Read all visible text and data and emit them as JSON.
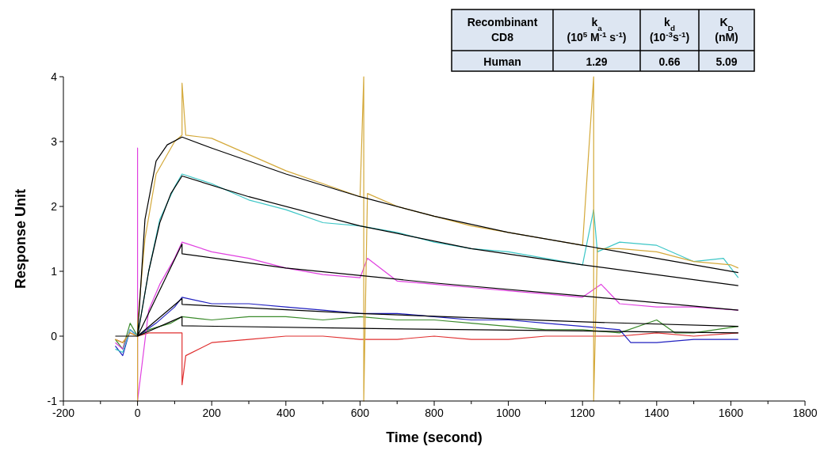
{
  "chart_data": [
    {
      "type": "line",
      "xlabel": "Time (second)",
      "ylabel": "Response Unit",
      "xlim": [
        -200,
        1800
      ],
      "ylim": [
        -1,
        4
      ],
      "xticks": [
        -200,
        {
          "value": -100,
          "label": null
        },
        0,
        {
          "value": 100,
          "label": null
        },
        200,
        {
          "value": 300,
          "label": null
        },
        400,
        {
          "value": 500,
          "label": null
        },
        600,
        {
          "value": 700,
          "label": null
        },
        800,
        {
          "value": 900,
          "label": null
        },
        1000,
        {
          "value": 1100,
          "label": null
        },
        1200,
        {
          "value": 1300,
          "label": null
        },
        1400,
        {
          "value": 1500,
          "label": null
        },
        1600,
        {
          "value": 1700,
          "label": null
        },
        1800
      ],
      "yticks": [
        -1,
        0,
        1,
        2,
        3,
        4
      ],
      "grid": false,
      "marker": "none",
      "line_style": "solid",
      "series": [
        {
          "color": "#e03030",
          "x": [
            -60,
            -40,
            -20,
            0,
            30,
            60,
            90,
            120,
            120,
            130,
            200,
            300,
            400,
            500,
            600,
            700,
            800,
            900,
            1000,
            1100,
            1200,
            1300,
            1400,
            1500,
            1620
          ],
          "values": [
            -0.05,
            -0.1,
            0.05,
            0,
            0.05,
            0.05,
            0.05,
            0.05,
            -0.75,
            -0.3,
            -0.1,
            -0.05,
            0,
            0,
            -0.05,
            -0.05,
            0,
            -0.05,
            -0.05,
            0,
            0,
            0,
            0.05,
            0,
            0.05
          ]
        },
        {
          "color": "#3a8a2a",
          "x": [
            -60,
            -40,
            -20,
            0,
            30,
            60,
            90,
            120,
            200,
            300,
            400,
            500,
            600,
            700,
            800,
            900,
            1000,
            1100,
            1200,
            1300,
            1400,
            1450,
            1500,
            1620
          ],
          "values": [
            -0.05,
            -0.2,
            0.2,
            0,
            0.1,
            0.15,
            0.2,
            0.3,
            0.25,
            0.3,
            0.3,
            0.25,
            0.3,
            0.25,
            0.25,
            0.2,
            0.15,
            0.1,
            0.1,
            0.05,
            0.25,
            0.05,
            0.05,
            0.15
          ]
        },
        {
          "color": "#2020c0",
          "x": [
            -60,
            -40,
            -20,
            0,
            50,
            100,
            120,
            200,
            300,
            400,
            500,
            600,
            700,
            800,
            900,
            1000,
            1100,
            1200,
            1300,
            1330,
            1400,
            1500,
            1620
          ],
          "values": [
            -0.15,
            -0.3,
            0.1,
            0,
            0.2,
            0.45,
            0.6,
            0.5,
            0.5,
            0.45,
            0.4,
            0.35,
            0.35,
            0.3,
            0.25,
            0.25,
            0.2,
            0.15,
            0.1,
            -0.1,
            -0.1,
            -0.05,
            -0.05
          ]
        },
        {
          "color": "#e040e0",
          "x": [
            -60,
            -40,
            -20,
            0,
            0,
            0,
            30,
            60,
            100,
            120,
            200,
            300,
            400,
            500,
            600,
            620,
            700,
            800,
            900,
            1000,
            1100,
            1200,
            1250,
            1300,
            1400,
            1500,
            1620
          ],
          "values": [
            -0.1,
            -0.2,
            0.1,
            0,
            2.9,
            -1,
            0.4,
            0.8,
            1.2,
            1.45,
            1.3,
            1.2,
            1.05,
            0.95,
            0.9,
            1.2,
            0.85,
            0.8,
            0.75,
            0.7,
            0.65,
            0.6,
            0.8,
            0.5,
            0.45,
            0.45,
            0.4
          ]
        },
        {
          "color": "#3cc6c6",
          "x": [
            -60,
            -40,
            -20,
            0,
            30,
            60,
            100,
            120,
            200,
            300,
            400,
            500,
            600,
            700,
            800,
            900,
            1000,
            1100,
            1200,
            1230,
            1240,
            1300,
            1400,
            1500,
            1580,
            1620
          ],
          "values": [
            -0.2,
            -0.25,
            0.1,
            0,
            1.0,
            1.8,
            2.3,
            2.5,
            2.35,
            2.1,
            1.95,
            1.75,
            1.7,
            1.6,
            1.45,
            1.35,
            1.3,
            1.2,
            1.1,
            1.95,
            1.3,
            1.45,
            1.4,
            1.15,
            1.2,
            0.9
          ]
        },
        {
          "color": "#d4a93a",
          "x": [
            -60,
            -40,
            -20,
            0,
            0,
            0,
            20,
            50,
            100,
            120,
            120,
            130,
            200,
            300,
            400,
            500,
            600,
            610,
            610,
            620,
            700,
            800,
            900,
            1000,
            1100,
            1200,
            1230,
            1230,
            1240,
            1300,
            1400,
            1500,
            1600,
            1620
          ],
          "values": [
            -0.05,
            -0.1,
            0.05,
            0,
            -1,
            0.2,
            1.5,
            2.5,
            3.0,
            3.1,
            3.9,
            3.1,
            3.05,
            2.8,
            2.55,
            2.35,
            2.15,
            4,
            -1,
            2.2,
            2.0,
            1.85,
            1.7,
            1.6,
            1.5,
            1.4,
            4,
            -1,
            1.35,
            1.35,
            1.3,
            1.15,
            1.1,
            1.05
          ]
        },
        {
          "color": "#000000",
          "x": [
            -60,
            0,
            20,
            50,
            80,
            120,
            200,
            400,
            600,
            800,
            1000,
            1200,
            1400,
            1620
          ],
          "values": [
            0,
            0,
            1.8,
            2.7,
            2.95,
            3.07,
            2.9,
            2.5,
            2.15,
            1.85,
            1.6,
            1.4,
            1.2,
            0.98
          ]
        },
        {
          "color": "#000000",
          "x": [
            0,
            30,
            60,
            90,
            120,
            300,
            600,
            900,
            1200,
            1620
          ],
          "values": [
            0,
            1.0,
            1.75,
            2.2,
            2.47,
            2.15,
            1.7,
            1.35,
            1.1,
            0.78
          ]
        },
        {
          "color": "#000000",
          "x": [
            0,
            120,
            120,
            400,
            800,
            1200,
            1620
          ],
          "values": [
            0,
            1.42,
            1.27,
            1.05,
            0.82,
            0.62,
            0.4
          ]
        },
        {
          "color": "#000000",
          "x": [
            0,
            120,
            120,
            600,
            1200,
            1620
          ],
          "values": [
            0,
            0.58,
            0.49,
            0.35,
            0.22,
            0.15
          ]
        },
        {
          "color": "#000000",
          "x": [
            0,
            120,
            120,
            600,
            1200,
            1620
          ],
          "values": [
            0,
            0.3,
            0.16,
            0.12,
            0.08,
            0.05
          ]
        }
      ]
    },
    {
      "type": "other",
      "categories": [
        "Recombinant CD8",
        "k$_{a}$ (10$^{5}$ M$^{-1}$ s$^{-1}$)",
        "k$_{d}$ (10$^{-3}$s$^{-1}$)",
        "K$_{D}$ (nM)"
      ],
      "annotations": [
        "Human",
        "1.29",
        "0.66",
        "5.09"
      ]
    }
  ]
}
